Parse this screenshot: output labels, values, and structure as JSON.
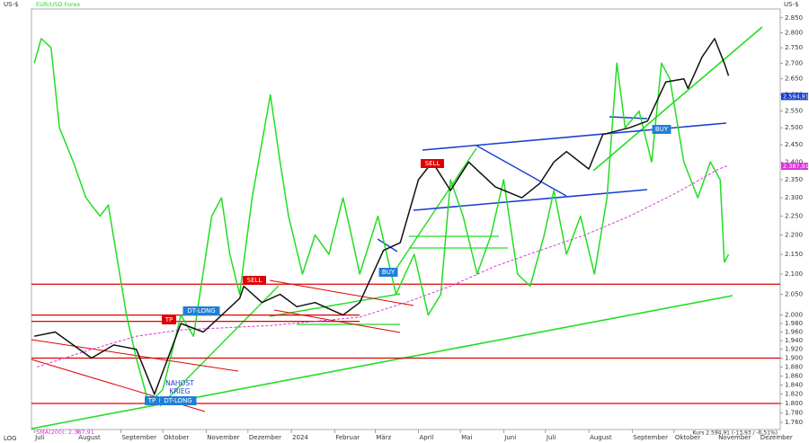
{
  "chart_data": {
    "type": "line",
    "log_scale": true,
    "unit": "US-$",
    "scale_note": "LOG",
    "status": "Kurs 2.594,91 (-13,93 / -0,51%)",
    "xlim": [
      -2,
      534
    ],
    "xticks": [
      {
        "value": 0,
        "label": "Juli"
      },
      {
        "value": 31,
        "label": "August"
      },
      {
        "value": 62,
        "label": "September"
      },
      {
        "value": 92,
        "label": "Oktober"
      },
      {
        "value": 123,
        "label": "November"
      },
      {
        "value": 153,
        "label": "Dezember"
      },
      {
        "value": 184,
        "label": "2024"
      },
      {
        "value": 215,
        "label": "Februar"
      },
      {
        "value": 244,
        "label": "März"
      },
      {
        "value": 275,
        "label": "April"
      },
      {
        "value": 305,
        "label": "Mai"
      },
      {
        "value": 336,
        "label": "Juni"
      },
      {
        "value": 366,
        "label": "Juli"
      },
      {
        "value": 397,
        "label": "August"
      },
      {
        "value": 428,
        "label": "September"
      },
      {
        "value": 458,
        "label": "Oktober"
      },
      {
        "value": 489,
        "label": "November"
      },
      {
        "value": 519,
        "label": "Dezember"
      }
    ],
    "ylim": [
      1745,
      2880
    ],
    "yticks": [
      {
        "value": 2850,
        "label": "2.850"
      },
      {
        "value": 2800,
        "label": "2.800"
      },
      {
        "value": 2750,
        "label": "2.750"
      },
      {
        "value": 2700,
        "label": "2.700"
      },
      {
        "value": 2650,
        "label": "2.650"
      },
      {
        "value": 2600,
        "label": "2.600"
      },
      {
        "value": 2550,
        "label": "2.550"
      },
      {
        "value": 2500,
        "label": "2.500"
      },
      {
        "value": 2450,
        "label": "2.450"
      },
      {
        "value": 2400,
        "label": "2.400"
      },
      {
        "value": 2350,
        "label": "2.350"
      },
      {
        "value": 2300,
        "label": "2.300"
      },
      {
        "value": 2250,
        "label": "2.250"
      },
      {
        "value": 2200,
        "label": "2.200"
      },
      {
        "value": 2150,
        "label": "2.150"
      },
      {
        "value": 2100,
        "label": "2.100"
      },
      {
        "value": 2050,
        "label": "2.050"
      },
      {
        "value": 2000,
        "label": "2.000"
      },
      {
        "value": 1980,
        "label": "1.980"
      },
      {
        "value": 1960,
        "label": "1.960"
      },
      {
        "value": 1940,
        "label": "1.940"
      },
      {
        "value": 1920,
        "label": "1.920"
      },
      {
        "value": 1900,
        "label": "1.900"
      },
      {
        "value": 1880,
        "label": "1.880"
      },
      {
        "value": 1860,
        "label": "1.860"
      },
      {
        "value": 1840,
        "label": "1.840"
      },
      {
        "value": 1820,
        "label": "1.820"
      },
      {
        "value": 1800,
        "label": "1.800"
      },
      {
        "value": 1780,
        "label": "1.780"
      },
      {
        "value": 1760,
        "label": "1.760"
      }
    ],
    "levels": [
      2075,
      2000,
      1985,
      1900,
      1800
    ],
    "level_color": "#e00000",
    "series": [
      {
        "name": "EUR/USD Forex",
        "color": "#22dd22",
        "x": [
          0,
          5,
          12,
          18,
          28,
          37,
          47,
          53,
          66,
          73,
          82,
          92,
          105,
          114,
          127,
          134,
          140,
          147,
          156,
          169,
          176,
          182,
          192,
          201,
          211,
          221,
          227,
          233,
          246,
          259,
          272,
          282,
          291,
          298,
          307,
          317,
          327,
          336,
          346,
          355,
          365,
          372,
          381,
          391,
          401,
          410,
          417,
          423,
          433,
          442,
          449,
          455,
          465,
          475,
          484,
          491,
          494,
          497
        ],
        "values": [
          2700,
          2780,
          2750,
          2500,
          2400,
          2300,
          2250,
          2280,
          2000,
          1900,
          1800,
          1830,
          2000,
          1950,
          2250,
          2300,
          2150,
          2050,
          2300,
          2600,
          2400,
          2250,
          2100,
          2200,
          2150,
          2300,
          2200,
          2100,
          2250,
          2050,
          2150,
          2000,
          2050,
          2350,
          2250,
          2100,
          2200,
          2350,
          2100,
          2070,
          2200,
          2320,
          2150,
          2250,
          2100,
          2300,
          2700,
          2500,
          2550,
          2400,
          2700,
          2650,
          2400,
          2300,
          2400,
          2350,
          2130,
          2150
        ]
      },
      {
        "name": "SMA(200): 2.387,91",
        "color": "#dd33dd",
        "dashed": true,
        "x": [
          2,
          41,
          73,
          105,
          137,
          169,
          201,
          233,
          266,
          298,
          330,
          362,
          394,
          426,
          458,
          490,
          497
        ],
        "values": [
          1880,
          1920,
          1950,
          1965,
          1970,
          1975,
          1985,
          1995,
          2030,
          2070,
          2120,
          2160,
          2200,
          2250,
          2310,
          2380,
          2390
        ],
        "marker": {
          "value": 2387.91,
          "label": "2.387,91"
        }
      },
      {
        "color": "#111111",
        "x": [
          0,
          15,
          41,
          57,
          73,
          86,
          105,
          121,
          131,
          147,
          150,
          163,
          176,
          188,
          201,
          221,
          233,
          250,
          262,
          275,
          285,
          298,
          311,
          330,
          349,
          362,
          372,
          381,
          397,
          407,
          426,
          439,
          452,
          465,
          468,
          478,
          487,
          494,
          497
        ],
        "values": [
          1950,
          1960,
          1900,
          1930,
          1920,
          1820,
          1980,
          1960,
          1990,
          2040,
          2070,
          2030,
          2050,
          2020,
          2030,
          2000,
          2030,
          2160,
          2180,
          2350,
          2400,
          2320,
          2400,
          2330,
          2300,
          2340,
          2400,
          2430,
          2380,
          2480,
          2500,
          2520,
          2640,
          2650,
          2620,
          2720,
          2780,
          2700,
          2660
        ],
        "marker": {
          "value": 2594.91,
          "label": "2.594,91",
          "color": "#1a3fd0"
        }
      }
    ],
    "annotations": [
      {
        "text": "TP",
        "color": "#e00000"
      },
      {
        "text": "DT-LONG",
        "color": "#1f7fd8"
      },
      {
        "text": "SELL",
        "color": "#e00000"
      },
      {
        "text": "TP",
        "color": "#1f7fd8"
      },
      {
        "text": "DT-LONG",
        "color": "#1f7fd8"
      },
      {
        "text": "BUY",
        "color": "#1f7fd8"
      },
      {
        "text": "SELL",
        "color": "#e00000"
      },
      {
        "text": "BUY",
        "color": "#1f7fd8"
      }
    ],
    "event_label": [
      "NAHOST",
      "KRIEG"
    ]
  }
}
